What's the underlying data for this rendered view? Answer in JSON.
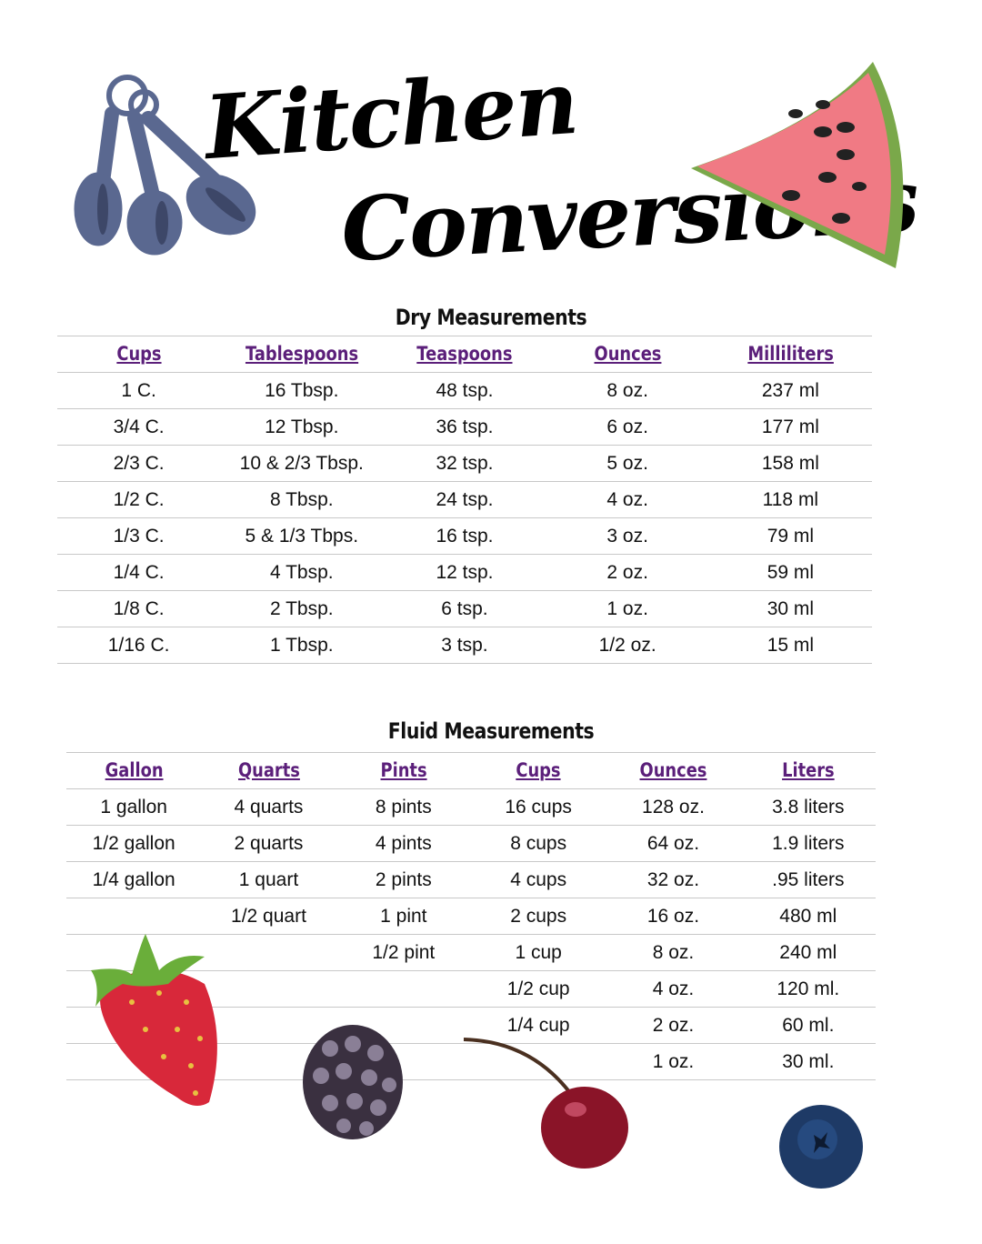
{
  "title": {
    "line1": "Kitchen",
    "line2": "Conversions"
  },
  "colors": {
    "header": "#5b1f7a",
    "spoons": "#5a6890",
    "rule": "#c8c8c8"
  },
  "dry": {
    "title": "Dry Measurements",
    "headers": [
      "Cups",
      "Tablespoons",
      "Teaspoons",
      "Ounces",
      "Milliliters"
    ],
    "rows": [
      [
        "1 C.",
        "16 Tbsp.",
        "48 tsp.",
        "8 oz.",
        "237 ml"
      ],
      [
        "3/4 C.",
        "12 Tbsp.",
        "36 tsp.",
        "6 oz.",
        "177 ml"
      ],
      [
        "2/3 C.",
        "10 & 2/3 Tbsp.",
        "32 tsp.",
        "5 oz.",
        "158 ml"
      ],
      [
        "1/2 C.",
        "8 Tbsp.",
        "24 tsp.",
        "4 oz.",
        "118 ml"
      ],
      [
        "1/3 C.",
        "5 & 1/3 Tbps.",
        "16 tsp.",
        "3 oz.",
        "79 ml"
      ],
      [
        "1/4 C.",
        "4 Tbsp.",
        "12 tsp.",
        "2 oz.",
        "59 ml"
      ],
      [
        "1/8 C.",
        "2 Tbsp.",
        "6 tsp.",
        "1 oz.",
        "30 ml"
      ],
      [
        "1/16 C.",
        "1 Tbsp.",
        "3 tsp.",
        "1/2 oz.",
        "15 ml"
      ]
    ]
  },
  "fluid": {
    "title": "Fluid Measurements",
    "headers": [
      "Gallon",
      "Quarts",
      "Pints",
      "Cups",
      "Ounces",
      "Liters"
    ],
    "rows": [
      [
        "1 gallon",
        "4 quarts",
        "8 pints",
        "16 cups",
        "128 oz.",
        "3.8 liters"
      ],
      [
        "1/2 gallon",
        "2 quarts",
        "4 pints",
        "8 cups",
        "64 oz.",
        "1.9 liters"
      ],
      [
        "1/4 gallon",
        "1 quart",
        "2 pints",
        "4 cups",
        "32 oz.",
        ".95 liters"
      ],
      [
        "",
        "1/2 quart",
        "1 pint",
        "2 cups",
        "16 oz.",
        "480 ml"
      ],
      [
        "",
        "",
        "1/2 pint",
        "1 cup",
        "8 oz.",
        "240 ml"
      ],
      [
        "",
        "",
        "",
        "1/2 cup",
        "4 oz.",
        "120 ml."
      ],
      [
        "",
        "",
        "",
        "1/4 cup",
        "2 oz.",
        "60 ml."
      ],
      [
        "",
        "",
        "",
        "",
        "1 oz.",
        "30 ml."
      ]
    ]
  },
  "illustrations": [
    "measuring-spoons",
    "watermelon",
    "strawberry",
    "blackberry",
    "cherry",
    "blueberry"
  ]
}
